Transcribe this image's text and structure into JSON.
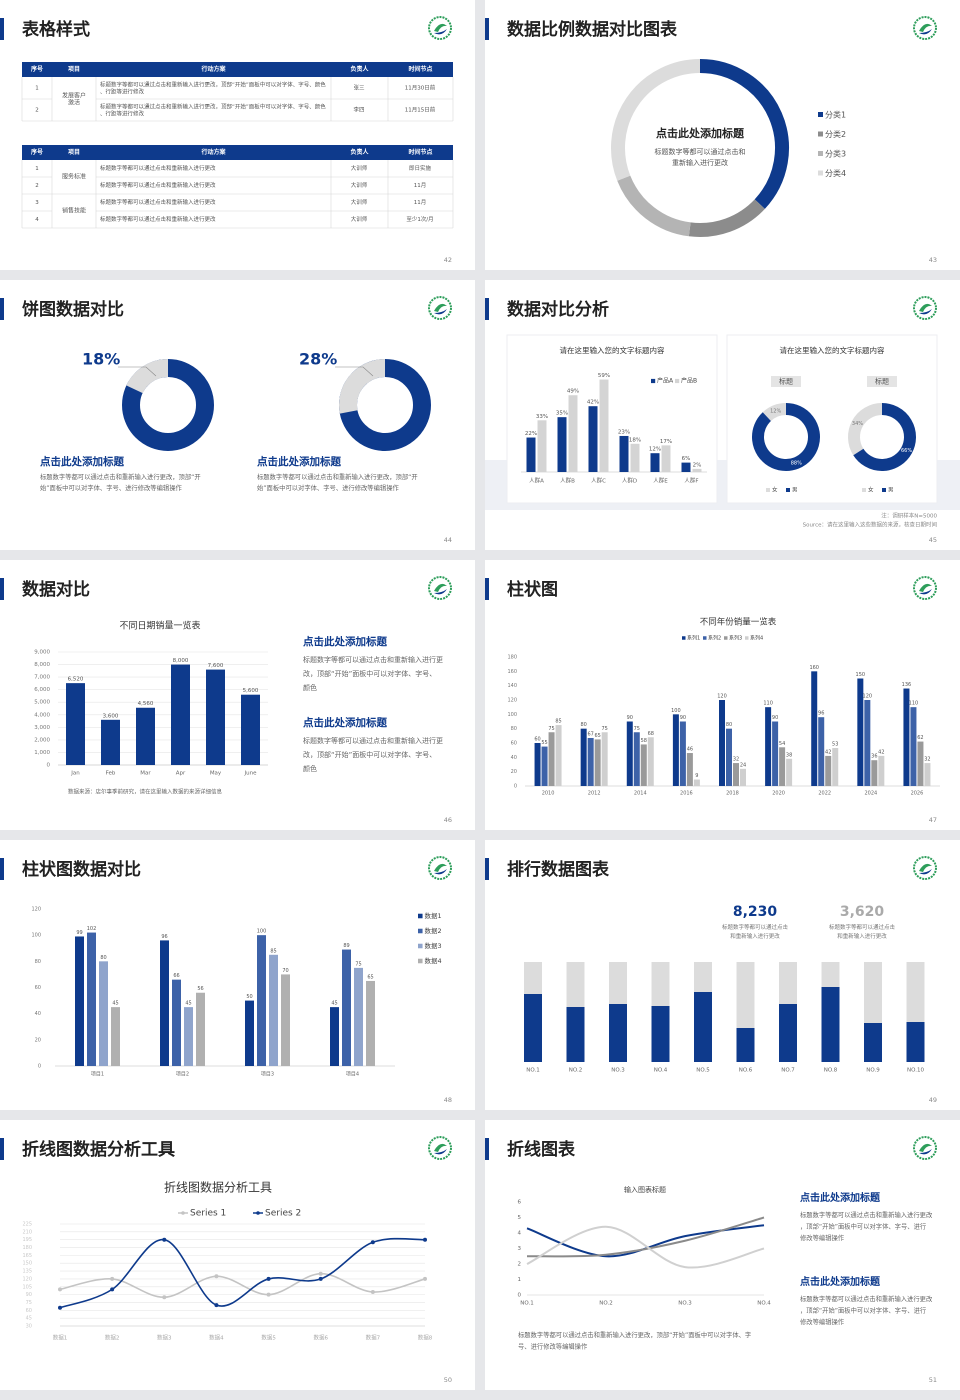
{
  "slides": [
    {
      "title": "表格样式",
      "page": 42,
      "tables": [
        {
          "headers": [
            "序号",
            "项目",
            "行动方案",
            "负责人",
            "时间节点"
          ],
          "groups": [
            {
              "label": "发展客户激活",
              "rows": [
                {
                  "no": "1",
                  "task": "标题数字等都可以通过点击和重新输入进行更改，顶部“开始”面板中可以对字体、字号、颜色、行距等进行修改",
                  "owner": "张三",
                  "date": "11月30日前"
                },
                {
                  "no": "2",
                  "task": "标题数字等都可以通过点击和重新输入进行更改，顶部“开始”面板中可以对字体、字号、颜色、行距等进行修改",
                  "owner": "李四",
                  "date": "11月15日前"
                }
              ]
            }
          ]
        },
        {
          "headers": [
            "序号",
            "项目",
            "行动方案",
            "负责人",
            "时间节点"
          ],
          "groups": [
            {
              "label": "服务标准",
              "rows": [
                {
                  "no": "1",
                  "task": "标题数字等都可以通过点击和重新输入进行更改",
                  "owner": "大训师",
                  "date": "即日实施"
                },
                {
                  "no": "2",
                  "task": "标题数字等都可以通过点击和重新输入进行更改",
                  "owner": "大训师",
                  "date": "11月"
                }
              ]
            },
            {
              "label": "销售技能",
              "rows": [
                {
                  "no": "3",
                  "task": "标题数字等都可以通过点击和重新输入进行更改",
                  "owner": "大训师",
                  "date": "11月"
                },
                {
                  "no": "4",
                  "task": "标题数字等都可以通过点击和重新输入进行更改",
                  "owner": "大训师",
                  "date": "至少1次/月"
                }
              ]
            }
          ]
        }
      ]
    },
    {
      "title": "数据比例数据对比图表",
      "page": 43,
      "chart_data": {
        "type": "pie",
        "center_title": "点击此处添加标题",
        "center_text": "标题数字等都可以通过点击和重新输入进行更改",
        "categories": [
          "分类1",
          "分类2",
          "分类3",
          "分类4"
        ],
        "values": [
          37,
          15,
          17,
          31
        ],
        "colors": [
          "#0e3a8c",
          "#8c8c8c",
          "#b4b4b4",
          "#dcdcdc"
        ]
      }
    },
    {
      "title": "饼图数据对比",
      "page": 44,
      "chart_data": [
        {
          "type": "pie",
          "values": [
            18
          ],
          "value_labels": [
            "18%"
          ],
          "color": "#dcdcdc"
        },
        {
          "type": "pie",
          "values": [
            28
          ],
          "value_labels": [
            "28%"
          ],
          "color": "#dcdcdc"
        }
      ],
      "items": [
        {
          "heading": "点击此处添加标题",
          "text": "标题数字等都可以通过点击和重新输入进行更改，顶部“开始”面板中可以对字体、字号、进行修改等编辑操作"
        },
        {
          "heading": "点击此处添加标题",
          "text": "标题数字等都可以通过点击和重新输入进行更改，顶部“开始”面板中可以对字体、字号、进行修改等编辑操作"
        }
      ]
    },
    {
      "title": "数据对比分析",
      "page": 45,
      "cards": [
        "请在这里输入您的文字标题内容",
        "请在这里输入您的文字标题内容"
      ],
      "chart_data": [
        {
          "type": "bar",
          "categories": [
            "人群A",
            "人群B",
            "人群C",
            "人群D",
            "人群E",
            "人群F"
          ],
          "ylim": [
            0,
            60
          ],
          "grid": false,
          "series": [
            {
              "name": "产品A",
              "color": "#0e3a8c",
              "values": [
                22,
                35,
                42,
                23,
                12,
                6
              ],
              "value_labels": [
                "22%",
                "35%",
                "42%",
                "23%",
                "12%",
                "6%"
              ]
            },
            {
              "name": "产品B",
              "color": "#d4d4d4",
              "values": [
                33,
                49,
                59,
                18,
                17,
                2
              ],
              "value_labels": [
                "33%",
                "49%",
                "59%",
                "18%",
                "17%",
                "2%"
              ]
            }
          ]
        },
        {
          "type": "pie",
          "label": "标题",
          "categories": [
            "女",
            "男"
          ],
          "colors": [
            "#dcdcdc",
            "#0e3a8c"
          ],
          "values": [
            12,
            88
          ],
          "value_labels": [
            "12%",
            "88%"
          ]
        },
        {
          "type": "pie",
          "label": "标题",
          "categories": [
            "女",
            "男"
          ],
          "colors": [
            "#dcdcdc",
            "#0e3a8c"
          ],
          "values": [
            34,
            66
          ],
          "value_labels": [
            "34%",
            "66%"
          ]
        }
      ],
      "note": "注：调研样本N=5000",
      "source": "Source：请在这里输入这些数据的来源，核查日期时间"
    },
    {
      "title": "数据对比",
      "page": 46,
      "chart_data": {
        "type": "bar",
        "title": "不同日期销量一览表",
        "categories": [
          "Jan",
          "Feb",
          "Mar",
          "Apr",
          "May",
          "June"
        ],
        "values": [
          6520,
          3600,
          4560,
          8000,
          7600,
          5600
        ],
        "value_labels": [
          "6,520",
          "3,600",
          "4,560",
          "8,000",
          "7,600",
          "5,600"
        ],
        "color": "#0e3a8c",
        "ylim": [
          0,
          9000
        ],
        "yticks": [
          0,
          {
            "value": 1000,
            "label": "1,000"
          },
          {
            "value": 2000,
            "label": "2,000"
          },
          {
            "value": 3000,
            "label": "3,000"
          },
          {
            "value": 4000,
            "label": "4,000"
          },
          {
            "value": 5000,
            "label": "5,000"
          },
          {
            "value": 6000,
            "label": "6,000"
          },
          {
            "value": 7000,
            "label": "7,000"
          },
          {
            "value": 8000,
            "label": "8,000"
          },
          {
            "value": 9000,
            "label": "9,000"
          }
        ],
        "grid": true
      },
      "source": "数据来源：店尔事季前研究，请在这里输入数据的来源详细信息",
      "items": [
        {
          "heading": "点击此处添加标题",
          "text": "标题数字等都可以通过点击和重新输入进行更改，顶部“开始”面板中可以对字体、字号、颜色"
        },
        {
          "heading": "点击此处添加标题",
          "text": "标题数字等都可以通过点击和重新输入进行更改，顶部“开始”面板中可以对字体、字号、颜色"
        }
      ]
    },
    {
      "title": "柱状图",
      "page": 47,
      "chart_data": {
        "type": "bar",
        "title": "不同年份销量一览表",
        "categories": [
          "2010",
          "2012",
          "2014",
          "2016",
          "2018",
          "2020",
          "2022",
          "2024",
          "2026"
        ],
        "ylim": [
          0,
          180
        ],
        "yticks": [
          0,
          20,
          40,
          60,
          80,
          100,
          120,
          140,
          160,
          180
        ],
        "grid": false,
        "series": [
          {
            "name": "系列1",
            "color": "#0e3a8c",
            "values": [
              60,
              80,
              90,
              100,
              120,
              110,
              160,
              150,
              136
            ]
          },
          {
            "name": "系列2",
            "color": "#3d62a8",
            "values": [
              55,
              67,
              75,
              90,
              80,
              90,
              96,
              120,
              110
            ]
          },
          {
            "name": "系列3",
            "color": "#9a9a9a",
            "values": [
              75,
              65,
              58,
              46,
              32,
              54,
              42,
              36,
              62
            ]
          },
          {
            "name": "系列4",
            "color": "#cfcfcf",
            "values": [
              85,
              75,
              68,
              9,
              24,
              38,
              53,
              42,
              32
            ]
          }
        ]
      }
    },
    {
      "title": "柱状图数据对比",
      "page": 48,
      "chart_data": {
        "type": "bar",
        "categories": [
          "项目1",
          "项目2",
          "项目3",
          "项目4"
        ],
        "ylim": [
          0,
          120
        ],
        "yticks": [
          0,
          20,
          40,
          60,
          80,
          100,
          120
        ],
        "grid": false,
        "series": [
          {
            "name": "数据1",
            "color": "#0e3a8c",
            "values": [
              99,
              96,
              50,
              45
            ]
          },
          {
            "name": "数据2",
            "color": "#3d62a8",
            "values": [
              102,
              66,
              100,
              89
            ]
          },
          {
            "name": "数据3",
            "color": "#8fa4cc",
            "values": [
              80,
              45,
              85,
              75
            ]
          },
          {
            "name": "数据4",
            "color": "#b0b0b0",
            "values": [
              45,
              56,
              70,
              65
            ]
          }
        ]
      }
    },
    {
      "title": "排行数据图表",
      "page": 49,
      "stats": [
        {
          "value": "8,230",
          "text": "标题数字等都可以通过点击和重新输入进行更改"
        },
        {
          "value": "3,620",
          "text": "标题数字等都可以通过点击和重新输入进行更改"
        }
      ],
      "chart_data": {
        "type": "bar",
        "categories": [
          "NO.1",
          "NO.2",
          "NO.3",
          "NO.4",
          "NO.5",
          "NO.6",
          "NO.7",
          "NO.8",
          "NO.9",
          "NO.10"
        ],
        "values": [
          68,
          55,
          58,
          56,
          70,
          34,
          58,
          75,
          39,
          40
        ],
        "ylim": [
          0,
          100
        ],
        "color": "#0e3a8c"
      }
    },
    {
      "title": "折线图数据分析工具",
      "page": 50,
      "chart_data": {
        "type": "line",
        "title": "折线图数据分析工具",
        "categories": [
          "数据1",
          "数据2",
          "数据3",
          "数据4",
          "数据5",
          "数据6",
          "数据7",
          "数据8"
        ],
        "ylim": [
          30,
          225
        ],
        "yticks": [
          30,
          45,
          60,
          75,
          90,
          105,
          120,
          135,
          150,
          165,
          180,
          195,
          210,
          225
        ],
        "grid": true,
        "series": [
          {
            "name": "Series 1",
            "color": "#c4c4c4",
            "values": [
              100,
              120,
              85,
              125,
              90,
              130,
              95,
              120
            ]
          },
          {
            "name": "Series 2",
            "color": "#0e3a8c",
            "values": [
              65,
              100,
              195,
              70,
              120,
              120,
              190,
              195
            ]
          }
        ]
      }
    },
    {
      "title": "折线图表",
      "page": 51,
      "chart_data": {
        "type": "line",
        "title": "输入图表标题",
        "categories": [
          "NO.1",
          "NO.2",
          "NO.3",
          "NO.4"
        ],
        "ylim": [
          0,
          6
        ],
        "yticks": [
          0,
          1,
          2,
          3,
          4,
          5,
          6
        ],
        "grid": false,
        "series": [
          {
            "color": "#0e3a8c",
            "values": [
              4.3,
              2.5,
              3.8,
              4.5
            ]
          },
          {
            "color": "#8a8a8a",
            "values": [
              2.5,
              2.6,
              3.5,
              5
            ]
          },
          {
            "color": "#d0d0d0",
            "values": [
              2,
              4.4,
              1.8,
              3
            ]
          }
        ]
      },
      "items": [
        {
          "heading": "点击此处添加标题",
          "text": "标题数字等都可以通过点击和重新输入进行更改，顶部“开始”面板中可以对字体、字号、进行修改等编辑操作"
        },
        {
          "heading": "点击此处添加标题",
          "text": "标题数字等都可以通过点击和重新输入进行更改，顶部“开始”面板中可以对字体、字号、进行修改等编辑操作"
        }
      ],
      "footer": "标题数字等都可以通过点击和重新输入进行更改，顶部“开始”面板中可以对字体、字号、进行修改等编辑操作"
    }
  ]
}
